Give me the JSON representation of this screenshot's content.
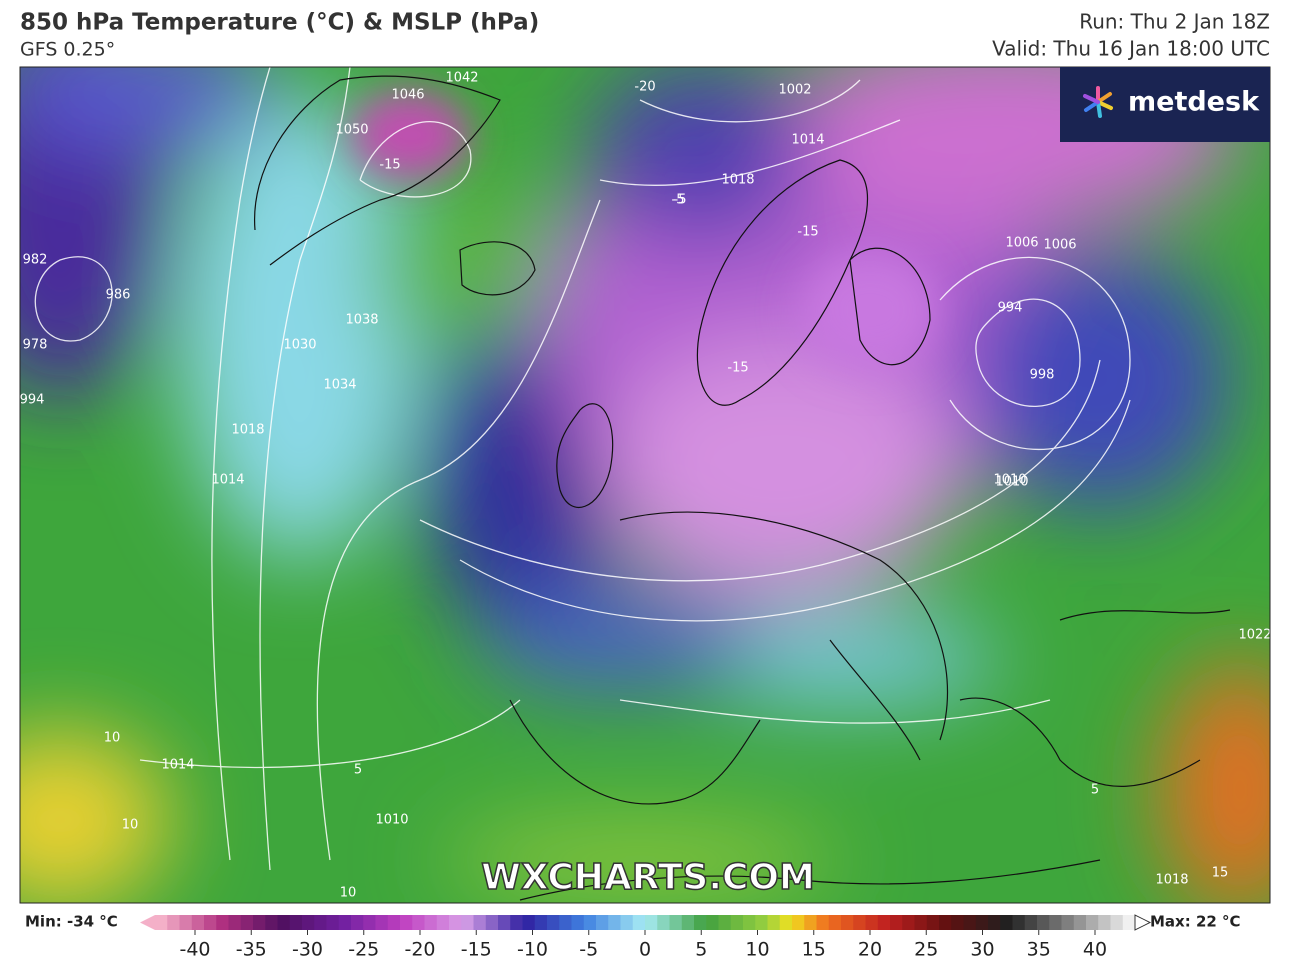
{
  "header": {
    "title": "850 hPa Temperature (°C) & MSLP (hPa)",
    "model": "GFS 0.25°",
    "run": "Run: Thu 2 Jan 18Z",
    "valid": "Valid: Thu 16 Jan 18:00 UTC"
  },
  "logo": "metdesk",
  "watermark": "WXCHARTS.COM",
  "map": {
    "contour_labels": [
      "1042",
      "1046",
      "1050",
      "-15",
      "-20",
      "1002",
      "1014",
      "1018",
      "-5",
      "1006",
      "994",
      "998",
      "1010",
      "1030",
      "1038",
      "1034",
      "1018",
      "1014",
      "986",
      "982",
      "978",
      "994",
      "-15",
      "-15",
      "1014",
      "10",
      "10",
      "1010",
      "10",
      "5",
      "15",
      "1018",
      "1022",
      "5",
      "-5",
      "1006",
      "1010"
    ]
  },
  "colorbar": {
    "min_label": "Min: -34 °C",
    "max_label": "Max: 22 °C",
    "ticks": [
      -40,
      -35,
      -30,
      -25,
      -20,
      -15,
      -10,
      -5,
      0,
      5,
      10,
      15,
      20,
      25,
      30,
      35,
      40
    ]
  }
}
